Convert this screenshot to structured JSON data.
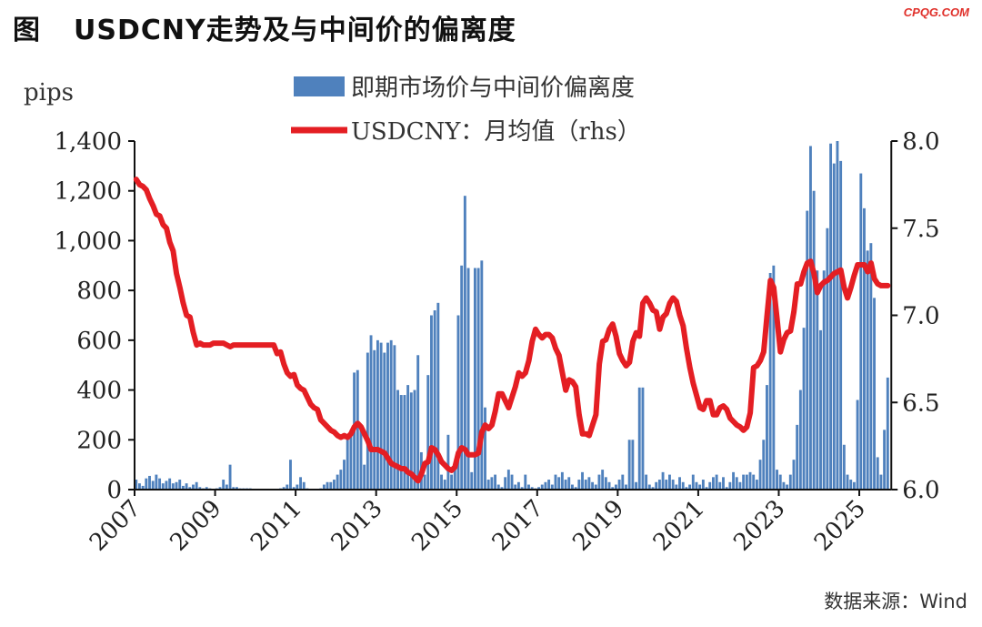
{
  "title": {
    "tag": "图",
    "text": "USDCNY走势及与中间价的偏离度"
  },
  "watermark": "CPQG.COM",
  "source": "数据来源：Wind",
  "colors": {
    "bar": "#4f81bd",
    "line": "#e41e23"
  },
  "chart_data": {
    "type": "bar+line",
    "title": "USDCNY走势及与中间价的偏离度",
    "ylabel": "pips",
    "ylim": [
      0,
      1400
    ],
    "y2lim": [
      6.0,
      8.0
    ],
    "yticks": [
      "0",
      "200",
      "400",
      "600",
      "800",
      "1,000",
      "1,200",
      "1,400"
    ],
    "y2ticks": [
      "6.0",
      "6.5",
      "7.0",
      "7.5",
      "8.0"
    ],
    "xticks": [
      "2007",
      "2009",
      "2011",
      "2013",
      "2015",
      "2017",
      "2019",
      "2021",
      "2023",
      "2025"
    ],
    "x_start": "2007-01",
    "x_frequency": "monthly",
    "legend_position": "top-center",
    "series": [
      {
        "name": "即期市场价与中间价偏离度",
        "type": "bar",
        "axis": "left",
        "values": [
          40,
          25,
          15,
          45,
          55,
          35,
          60,
          45,
          25,
          35,
          45,
          25,
          30,
          40,
          15,
          25,
          10,
          20,
          30,
          10,
          5,
          10,
          5,
          2,
          5,
          10,
          40,
          20,
          100,
          10,
          10,
          5,
          5,
          5,
          5,
          2,
          2,
          2,
          2,
          2,
          2,
          2,
          2,
          5,
          10,
          20,
          120,
          10,
          20,
          50,
          30,
          5,
          2,
          2,
          2,
          5,
          20,
          30,
          30,
          40,
          60,
          80,
          120,
          200,
          240,
          470,
          480,
          250,
          100,
          550,
          620,
          560,
          600,
          590,
          550,
          590,
          600,
          580,
          400,
          380,
          380,
          420,
          390,
          400,
          540,
          150,
          60,
          460,
          700,
          720,
          750,
          60,
          40,
          220,
          60,
          110,
          700,
          900,
          1180,
          890,
          70,
          890,
          890,
          920,
          330,
          40,
          50,
          60,
          20,
          10,
          50,
          80,
          60,
          20,
          30,
          10,
          60,
          20,
          10,
          5,
          10,
          20,
          30,
          40,
          20,
          60,
          50,
          70,
          40,
          50,
          20,
          10,
          40,
          70,
          40,
          50,
          30,
          20,
          60,
          80,
          50,
          30,
          10,
          20,
          40,
          60,
          20,
          200,
          200,
          30,
          410,
          410,
          60,
          20,
          10,
          30,
          40,
          70,
          40,
          60,
          40,
          20,
          50,
          30,
          10,
          20,
          60,
          30,
          20,
          40,
          10,
          30,
          50,
          60,
          30,
          50,
          10,
          30,
          70,
          50,
          30,
          60,
          60,
          70,
          60,
          40,
          120,
          200,
          420,
          870,
          900,
          80,
          60,
          30,
          20,
          60,
          120,
          260,
          400,
          650,
          1120,
          1380,
          1200,
          880,
          640,
          880,
          1050,
          1390,
          1310,
          1400,
          1320,
          180,
          60,
          40,
          30,
          360,
          1270,
          1130,
          960,
          990,
          770,
          130,
          60,
          240,
          450
        ]
      },
      {
        "name": "USDCNY：月均值（rhs）",
        "type": "line",
        "axis": "right",
        "values": [
          7.78,
          7.75,
          7.74,
          7.72,
          7.67,
          7.63,
          7.58,
          7.57,
          7.52,
          7.5,
          7.42,
          7.37,
          7.24,
          7.16,
          7.07,
          7.0,
          6.99,
          6.9,
          6.83,
          6.84,
          6.83,
          6.83,
          6.83,
          6.84,
          6.84,
          6.84,
          6.84,
          6.83,
          6.82,
          6.83,
          6.83,
          6.83,
          6.83,
          6.83,
          6.83,
          6.83,
          6.83,
          6.83,
          6.83,
          6.83,
          6.83,
          6.83,
          6.78,
          6.79,
          6.72,
          6.67,
          6.65,
          6.66,
          6.6,
          6.58,
          6.57,
          6.53,
          6.49,
          6.47,
          6.46,
          6.4,
          6.38,
          6.36,
          6.34,
          6.33,
          6.31,
          6.3,
          6.31,
          6.3,
          6.32,
          6.36,
          6.38,
          6.36,
          6.32,
          6.28,
          6.23,
          6.23,
          6.23,
          6.22,
          6.21,
          6.18,
          6.15,
          6.14,
          6.13,
          6.12,
          6.12,
          6.1,
          6.09,
          6.07,
          6.05,
          6.09,
          6.15,
          6.16,
          6.24,
          6.23,
          6.2,
          6.16,
          6.14,
          6.12,
          6.11,
          6.13,
          6.21,
          6.24,
          6.23,
          6.2,
          6.2,
          6.2,
          6.21,
          6.33,
          6.37,
          6.35,
          6.37,
          6.45,
          6.55,
          6.55,
          6.51,
          6.47,
          6.53,
          6.59,
          6.67,
          6.65,
          6.67,
          6.74,
          6.85,
          6.92,
          6.89,
          6.87,
          6.89,
          6.89,
          6.87,
          6.81,
          6.77,
          6.67,
          6.57,
          6.63,
          6.62,
          6.59,
          6.43,
          6.32,
          6.32,
          6.31,
          6.37,
          6.43,
          6.72,
          6.85,
          6.86,
          6.92,
          6.95,
          6.88,
          6.78,
          6.74,
          6.71,
          6.73,
          6.85,
          6.9,
          6.88,
          7.07,
          7.1,
          7.07,
          7.03,
          7.02,
          6.92,
          6.99,
          7.01,
          7.07,
          7.1,
          7.08,
          7.0,
          6.94,
          6.81,
          6.7,
          6.61,
          6.54,
          6.47,
          6.46,
          6.51,
          6.51,
          6.43,
          6.43,
          6.47,
          6.48,
          6.46,
          6.41,
          6.39,
          6.37,
          6.36,
          6.34,
          6.36,
          6.44,
          6.7,
          6.71,
          6.74,
          6.79,
          7.0,
          7.2,
          7.16,
          6.98,
          6.79,
          6.86,
          6.9,
          6.91,
          7.02,
          7.18,
          7.18,
          7.25,
          7.3,
          7.31,
          7.24,
          7.13,
          7.17,
          7.19,
          7.2,
          7.22,
          7.24,
          7.25,
          7.26,
          7.16,
          7.1,
          7.16,
          7.23,
          7.29,
          7.29,
          7.29,
          7.25,
          7.3,
          7.21,
          7.18,
          7.17,
          7.17,
          7.17
        ]
      }
    ]
  }
}
